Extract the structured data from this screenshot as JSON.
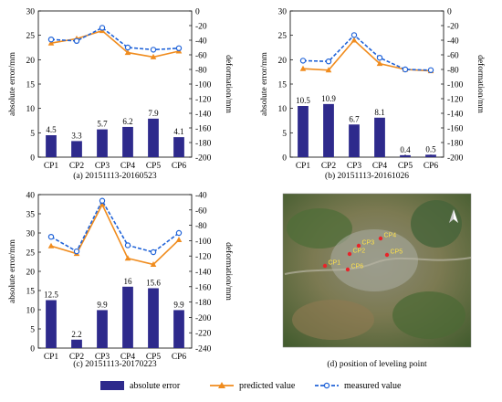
{
  "colors": {
    "bar": "#2e2a8c",
    "predicted": "#f08c1e",
    "measured": "#2063d8",
    "map_point": "#e8242a"
  },
  "legend": {
    "absolute_error": "absolute error",
    "predicted_value": "predicted value",
    "measured_value": "measured value"
  },
  "map": {
    "caption": "(d)  position of leveling point",
    "north_icon": "north-arrow-icon",
    "points": [
      "CP1",
      "CP2",
      "CP3",
      "CP4",
      "CP5",
      "CP6"
    ]
  },
  "chart_data": [
    {
      "type": "bar",
      "caption": "(a) 20151113-20160523",
      "categories": [
        "CP1",
        "CP2",
        "CP3",
        "CP4",
        "CP5",
        "CP6"
      ],
      "ylabel": "absolute error/mm",
      "ylim": [
        0,
        30
      ],
      "yticks": [
        0,
        5,
        10,
        15,
        20,
        25,
        30
      ],
      "y2label": "deformation/mm",
      "y2lim": [
        -200,
        0
      ],
      "y2ticks": [
        -200,
        -180,
        -160,
        -140,
        -120,
        -100,
        -80,
        -60,
        -40,
        -20,
        0
      ],
      "series": [
        {
          "name": "absolute error",
          "type": "bar",
          "axis": "left",
          "values": [
            4.5,
            3.3,
            5.7,
            6.2,
            7.9,
            4.1
          ],
          "labels": [
            "4.5",
            "3.3",
            "5.7",
            "6.2",
            "7.9",
            "4.1"
          ]
        },
        {
          "name": "predicted value",
          "type": "line",
          "axis": "right",
          "values": [
            -44,
            -38,
            -27,
            -57,
            -63,
            -55
          ]
        },
        {
          "name": "measured value",
          "type": "line",
          "axis": "right",
          "values": [
            -39,
            -41,
            -23,
            -50,
            -53,
            -51
          ]
        }
      ]
    },
    {
      "type": "bar",
      "caption": "(b) 20151113-20161026",
      "categories": [
        "CP1",
        "CP2",
        "CP3",
        "CP4",
        "CP5",
        "CP6"
      ],
      "ylabel": "absolute error/mm",
      "ylim": [
        0,
        30
      ],
      "yticks": [
        0,
        5,
        10,
        15,
        20,
        25,
        30
      ],
      "y2label": "deformation/mm",
      "y2lim": [
        -200,
        0
      ],
      "y2ticks": [
        -200,
        -180,
        -160,
        -140,
        -120,
        -100,
        -80,
        -60,
        -40,
        -20,
        0
      ],
      "series": [
        {
          "name": "absolute error",
          "type": "bar",
          "axis": "left",
          "values": [
            10.5,
            10.9,
            6.7,
            8.1,
            0.4,
            0.5
          ],
          "labels": [
            "10.5",
            "10.9",
            "6.7",
            "8.1",
            "0.4",
            "0.5"
          ]
        },
        {
          "name": "predicted value",
          "type": "line",
          "axis": "right",
          "values": [
            -79,
            -81,
            -40,
            -72,
            -80,
            -82
          ]
        },
        {
          "name": "measured value",
          "type": "line",
          "axis": "right",
          "values": [
            -68,
            -69,
            -33,
            -64,
            -80,
            -81
          ]
        }
      ]
    },
    {
      "type": "bar",
      "caption": "(c) 20151113-20170223",
      "categories": [
        "CP1",
        "CP2",
        "CP3",
        "CP4",
        "CP5",
        "CP6"
      ],
      "ylabel": "absolute error/mm",
      "ylim": [
        0,
        40
      ],
      "yticks": [
        0,
        5,
        10,
        15,
        20,
        25,
        30,
        35,
        40
      ],
      "y2label": "deformation/mm",
      "y2lim": [
        -240,
        -40
      ],
      "y2ticks": [
        -240,
        -220,
        -200,
        -180,
        -160,
        -140,
        -120,
        -100,
        -80,
        -60,
        -40
      ],
      "series": [
        {
          "name": "absolute error",
          "type": "bar",
          "axis": "left",
          "values": [
            12.5,
            2.2,
            9.9,
            16,
            15.6,
            9.9
          ],
          "labels": [
            "12.5",
            "2.2",
            "9.9",
            "16",
            "15.6",
            "9.9"
          ]
        },
        {
          "name": "predicted value",
          "type": "line",
          "axis": "right",
          "values": [
            -107,
            -117,
            -53,
            -123,
            -131,
            -99
          ]
        },
        {
          "name": "measured value",
          "type": "line",
          "axis": "right",
          "values": [
            -95,
            -114,
            -48,
            -106,
            -115,
            -90
          ]
        }
      ]
    }
  ]
}
